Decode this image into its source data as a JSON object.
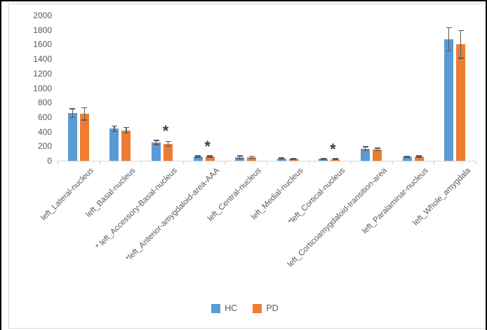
{
  "chart_data": {
    "type": "bar",
    "title": "",
    "xlabel": "",
    "ylabel": "",
    "ylim": [
      0,
      2000
    ],
    "ytick_step": 200,
    "grid": false,
    "legend_position": "bottom",
    "significance_marker": "*",
    "categories": [
      "left_Lateral-nucleus",
      "left_Basal-nucleus",
      "* left_Accessory-Basal-nucleus",
      "*left_Anterior-amygdaloid-area-AAA",
      "left_Central-nucleus",
      "left_Medial-nucleus",
      "*left_Cortical-nucleus",
      "left_Corticoamygdaloid-transition-area",
      "left_Paralaminar-nucleus",
      "left_Whole_amygdala"
    ],
    "starred_category_indexes": [
      2,
      3,
      6
    ],
    "series": [
      {
        "name": "HC",
        "color": "#5B9BD5",
        "values": [
          655,
          440,
          252,
          60,
          46,
          30,
          26,
          167,
          55,
          1670
        ],
        "errors": [
          62,
          40,
          28,
          10,
          20,
          8,
          6,
          25,
          8,
          160
        ]
      },
      {
        "name": "PD",
        "color": "#ED7D31",
        "values": [
          645,
          420,
          232,
          57,
          50,
          27,
          24,
          157,
          58,
          1600
        ],
        "errors": [
          85,
          40,
          35,
          10,
          14,
          6,
          5,
          18,
          8,
          190
        ]
      }
    ]
  },
  "legend": {
    "items": [
      {
        "label": "HC",
        "color": "#5B9BD5"
      },
      {
        "label": "PD",
        "color": "#ED7D31"
      }
    ]
  },
  "colors": {
    "error_bar": "#595959",
    "axis_line": "#d6d6d6",
    "tick": "#c9c9c9",
    "text": "#595959",
    "asterisk": "#404040",
    "frame_border": "#d9d9d9",
    "outer_border": "#000000"
  }
}
